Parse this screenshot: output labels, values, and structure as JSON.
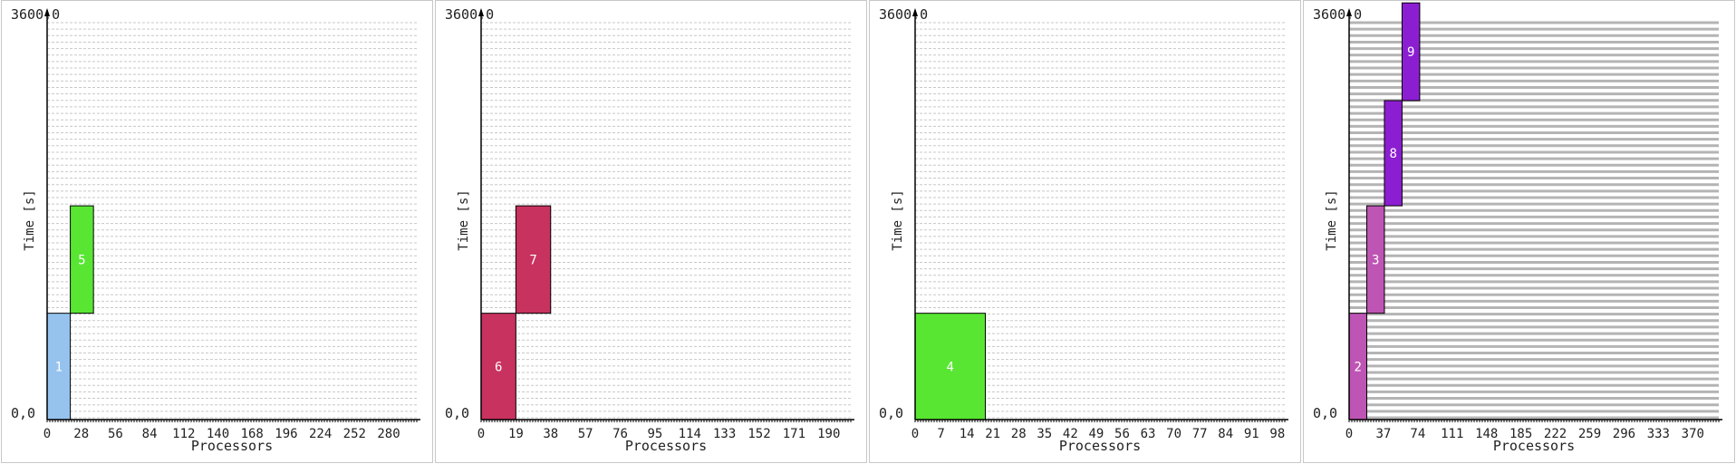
{
  "chart_data": [
    {
      "type": "gantt",
      "ylabel": "Time [s]",
      "xlabel": "Processors",
      "y_top_label": "3600,0",
      "y_bottom_label": "0,0",
      "ylim": [
        0,
        3600
      ],
      "xlim": [
        0,
        303
      ],
      "x_ticks": [
        0,
        28,
        56,
        84,
        112,
        140,
        168,
        196,
        224,
        252,
        280
      ],
      "grid": "horizontal-dashed",
      "colors": {
        "grid": "#c8c8c8",
        "axis": "#000000",
        "block_text": "#ffffff"
      },
      "jobs": [
        {
          "label": "1",
          "proc_start": 0,
          "proc_end": 19,
          "time_start": 0,
          "time_end": 960,
          "color": "#95c3ee"
        },
        {
          "label": "5",
          "proc_start": 19,
          "proc_end": 38,
          "time_start": 960,
          "time_end": 1930,
          "color": "#58e632"
        }
      ]
    },
    {
      "type": "gantt",
      "ylabel": "Time [s]",
      "xlabel": "Processors",
      "y_top_label": "3600,0",
      "y_bottom_label": "0,0",
      "ylim": [
        0,
        3600
      ],
      "xlim": [
        0,
        202
      ],
      "x_ticks": [
        0,
        19,
        38,
        57,
        76,
        95,
        114,
        133,
        152,
        171,
        190
      ],
      "grid": "horizontal-dashed",
      "colors": {
        "grid": "#c8c8c8",
        "axis": "#000000",
        "block_text": "#ffffff"
      },
      "jobs": [
        {
          "label": "6",
          "proc_start": 0,
          "proc_end": 19,
          "time_start": 0,
          "time_end": 960,
          "color": "#c8325f"
        },
        {
          "label": "7",
          "proc_start": 19,
          "proc_end": 38,
          "time_start": 960,
          "time_end": 1930,
          "color": "#c8325f"
        }
      ]
    },
    {
      "type": "gantt",
      "ylabel": "Time [s]",
      "xlabel": "Processors",
      "y_top_label": "3600,0",
      "y_bottom_label": "0,0",
      "ylim": [
        0,
        3600
      ],
      "xlim": [
        0,
        100
      ],
      "x_ticks": [
        0,
        7,
        14,
        21,
        28,
        35,
        42,
        49,
        56,
        63,
        70,
        77,
        84,
        91,
        98
      ],
      "grid": "horizontal-dashed",
      "colors": {
        "grid": "#c8c8c8",
        "axis": "#000000",
        "block_text": "#ffffff"
      },
      "jobs": [
        {
          "label": "4",
          "proc_start": 0,
          "proc_end": 19,
          "time_start": 0,
          "time_end": 960,
          "color": "#58e632"
        }
      ]
    },
    {
      "type": "gantt",
      "ylabel": "Time [s]",
      "xlabel": "Processors",
      "y_top_label": "3600,0",
      "y_bottom_label": "0,0",
      "ylim": [
        0,
        3600
      ],
      "xlim": [
        0,
        398
      ],
      "x_ticks": [
        0,
        37,
        74,
        111,
        148,
        185,
        222,
        259,
        296,
        333,
        370
      ],
      "grid": "horizontal-solid",
      "colors": {
        "grid": "#b4b4b4",
        "axis": "#000000",
        "block_text": "#ffffff"
      },
      "jobs": [
        {
          "label": "2",
          "proc_start": 0,
          "proc_end": 19,
          "time_start": 0,
          "time_end": 960,
          "color": "#be55b4"
        },
        {
          "label": "3",
          "proc_start": 19,
          "proc_end": 38,
          "time_start": 960,
          "time_end": 1930,
          "color": "#be55b4"
        },
        {
          "label": "8",
          "proc_start": 38,
          "proc_end": 57,
          "time_start": 1930,
          "time_end": 2880,
          "color": "#8c1ed2"
        },
        {
          "label": "9",
          "proc_start": 57,
          "proc_end": 76,
          "time_start": 2880,
          "time_end": 3780,
          "color": "#8c1ed2"
        }
      ]
    }
  ]
}
